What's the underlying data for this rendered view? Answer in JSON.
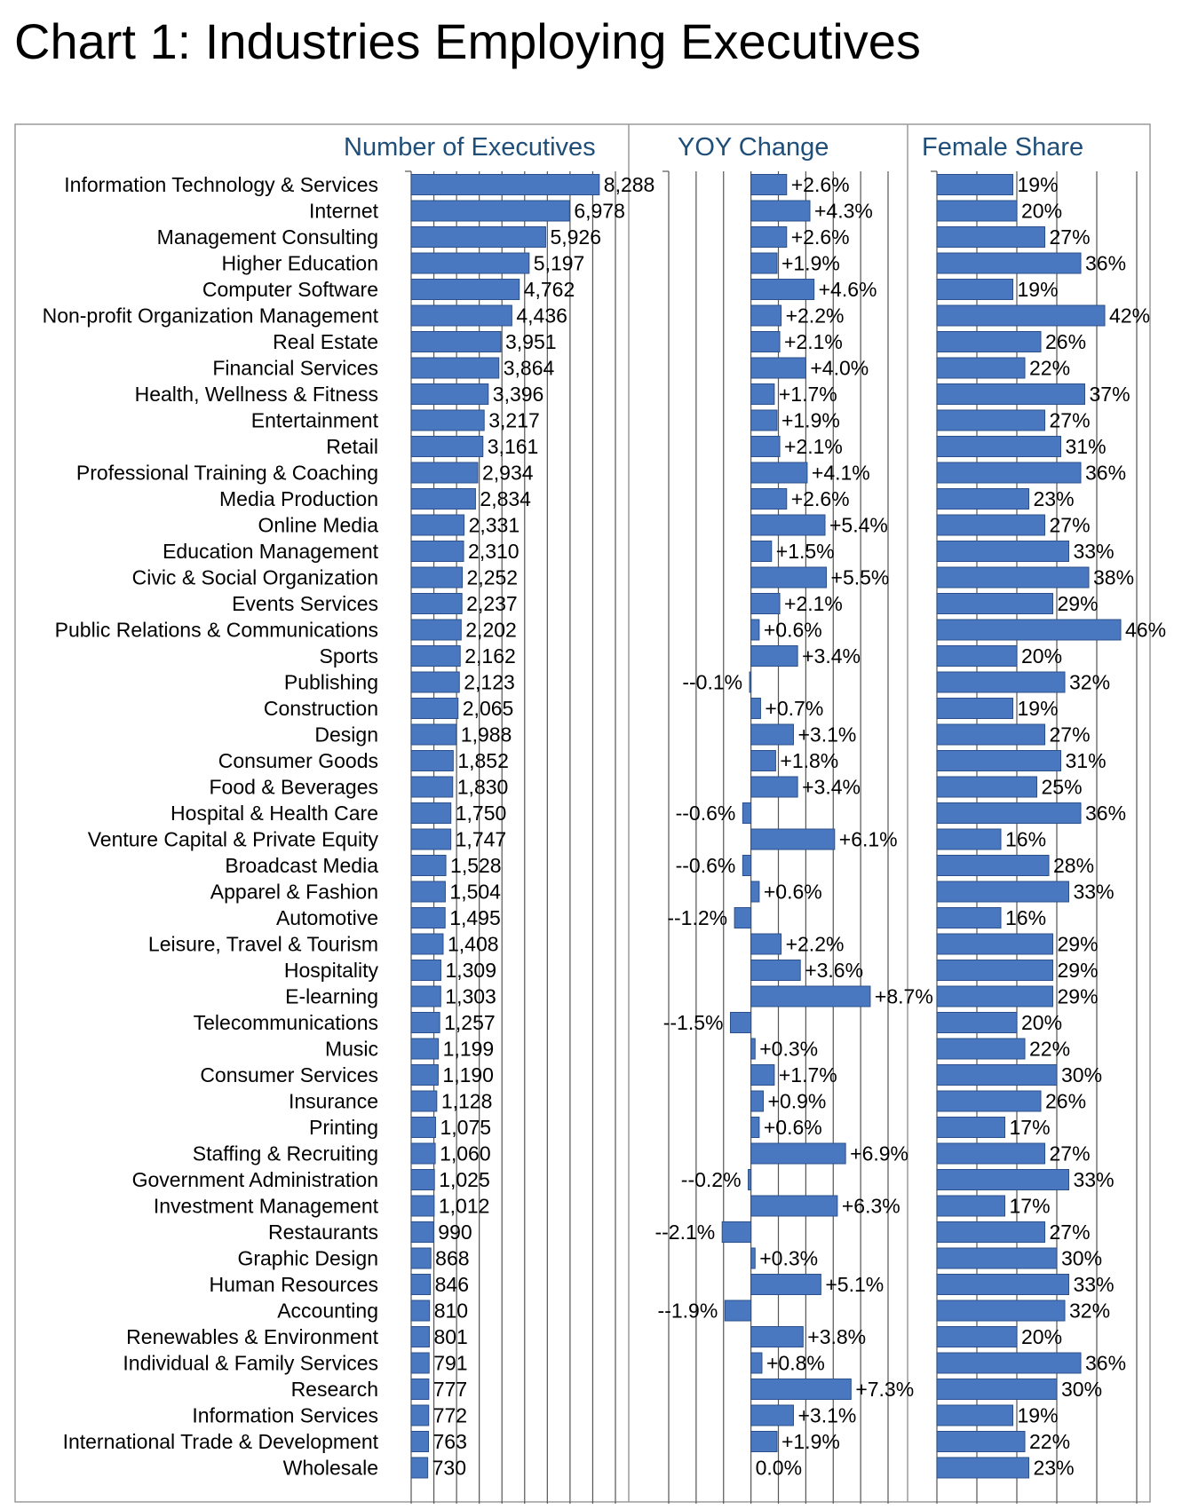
{
  "page": {
    "title": "Chart 1: Industries Employing Executives"
  },
  "chart_data": {
    "type": "bar",
    "orientation": "horizontal",
    "title": "Chart 1: Industries Employing Executives",
    "colors": {
      "bar": "#4a78c0",
      "header": "#1f4e79"
    },
    "categories": [
      "Information Technology & Services",
      "Internet",
      "Management Consulting",
      "Higher Education",
      "Computer Software",
      "Non-profit Organization Management",
      "Real Estate",
      "Financial Services",
      "Health, Wellness & Fitness",
      "Entertainment",
      "Retail",
      "Professional Training & Coaching",
      "Media Production",
      "Online Media",
      "Education Management",
      "Civic & Social Organization",
      "Events Services",
      "Public Relations & Communications",
      "Sports",
      "Publishing",
      "Construction",
      "Design",
      "Consumer Goods",
      "Food & Beverages",
      "Hospital & Health Care",
      "Venture Capital & Private Equity",
      "Broadcast Media",
      "Apparel & Fashion",
      "Automotive",
      "Leisure, Travel & Tourism",
      "Hospitality",
      "E-learning",
      "Telecommunications",
      "Music",
      "Consumer Services",
      "Insurance",
      "Printing",
      "Staffing & Recruiting",
      "Government Administration",
      "Investment Management",
      "Restaurants",
      "Graphic Design",
      "Human Resources",
      "Accounting",
      "Renewables & Environment",
      "Individual & Family Services",
      "Research",
      "Information Services",
      "International Trade & Development",
      "Wholesale"
    ],
    "panels": [
      {
        "name": "Number of Executives",
        "xlim": [
          0,
          9000
        ],
        "values": [
          8288,
          6978,
          5926,
          5197,
          4762,
          4436,
          3951,
          3864,
          3396,
          3217,
          3161,
          2934,
          2834,
          2331,
          2310,
          2252,
          2237,
          2202,
          2162,
          2123,
          2065,
          1988,
          1852,
          1830,
          1750,
          1747,
          1528,
          1504,
          1495,
          1408,
          1309,
          1303,
          1257,
          1199,
          1190,
          1128,
          1075,
          1060,
          1025,
          1012,
          990,
          868,
          846,
          810,
          801,
          791,
          777,
          772,
          763,
          730
        ],
        "labels": [
          "8,288",
          "6,978",
          "5,926",
          "5,197",
          "4,762",
          "4,436",
          "3,951",
          "3,864",
          "3,396",
          "3,217",
          "3,161",
          "2,934",
          "2,834",
          "2,331",
          "2,310",
          "2,252",
          "2,237",
          "2,202",
          "2,162",
          "2,123",
          "2,065",
          "1,988",
          "1,852",
          "1,830",
          "1,750",
          "1,747",
          "1,528",
          "1,504",
          "1,495",
          "1,408",
          "1,309",
          "1,303",
          "1,257",
          "1,199",
          "1,190",
          "1,128",
          "1,075",
          "1,060",
          "1,025",
          "1,012",
          "990",
          "868",
          "846",
          "810",
          "801",
          "791",
          "777",
          "772",
          "763",
          "730"
        ]
      },
      {
        "name": "YOY Change",
        "xlim": [
          -6,
          10
        ],
        "values": [
          2.6,
          4.3,
          2.6,
          1.9,
          4.6,
          2.2,
          2.1,
          4.0,
          1.7,
          1.9,
          2.1,
          4.1,
          2.6,
          5.4,
          1.5,
          5.5,
          2.1,
          0.6,
          3.4,
          -0.1,
          0.7,
          3.1,
          1.8,
          3.4,
          -0.6,
          6.1,
          -0.6,
          0.6,
          -1.2,
          2.2,
          3.6,
          8.7,
          -1.5,
          0.3,
          1.7,
          0.9,
          0.6,
          6.9,
          -0.2,
          6.3,
          -2.1,
          0.3,
          5.1,
          -1.9,
          3.8,
          0.8,
          7.3,
          3.1,
          1.9,
          0.0
        ],
        "labels": [
          "+2.6%",
          "+4.3%",
          "+2.6%",
          "+1.9%",
          "+4.6%",
          "+2.2%",
          "+2.1%",
          "+4.0%",
          "+1.7%",
          "+1.9%",
          "+2.1%",
          "+4.1%",
          "+2.6%",
          "+5.4%",
          "+1.5%",
          "+5.5%",
          "+2.1%",
          "+0.6%",
          "+3.4%",
          "--0.1%",
          "+0.7%",
          "+3.1%",
          "+1.8%",
          "+3.4%",
          "--0.6%",
          "+6.1%",
          "--0.6%",
          "+0.6%",
          "--1.2%",
          "+2.2%",
          "+3.6%",
          "+8.7%",
          "--1.5%",
          "+0.3%",
          "+1.7%",
          "+0.9%",
          "+0.6%",
          "+6.9%",
          "--0.2%",
          "+6.3%",
          "--2.1%",
          "+0.3%",
          "+5.1%",
          "--1.9%",
          "+3.8%",
          "+0.8%",
          "+7.3%",
          "+3.1%",
          "+1.9%",
          "0.0%"
        ]
      },
      {
        "name": "Female Share",
        "xlim": [
          0,
          50
        ],
        "values": [
          19,
          20,
          27,
          36,
          19,
          42,
          26,
          22,
          37,
          27,
          31,
          36,
          23,
          27,
          33,
          38,
          29,
          46,
          20,
          32,
          19,
          27,
          31,
          25,
          36,
          16,
          28,
          33,
          16,
          29,
          29,
          29,
          20,
          22,
          30,
          26,
          17,
          27,
          33,
          17,
          27,
          30,
          33,
          32,
          20,
          36,
          30,
          19,
          22,
          23
        ],
        "labels": [
          "19%",
          "20%",
          "27%",
          "36%",
          "19%",
          "42%",
          "26%",
          "22%",
          "37%",
          "27%",
          "31%",
          "36%",
          "23%",
          "27%",
          "33%",
          "38%",
          "29%",
          "46%",
          "20%",
          "32%",
          "19%",
          "27%",
          "31%",
          "25%",
          "36%",
          "16%",
          "28%",
          "33%",
          "16%",
          "29%",
          "29%",
          "29%",
          "20%",
          "22%",
          "30%",
          "26%",
          "17%",
          "27%",
          "33%",
          "17%",
          "27%",
          "30%",
          "33%",
          "32%",
          "20%",
          "36%",
          "30%",
          "19%",
          "22%",
          "23%"
        ]
      }
    ]
  }
}
